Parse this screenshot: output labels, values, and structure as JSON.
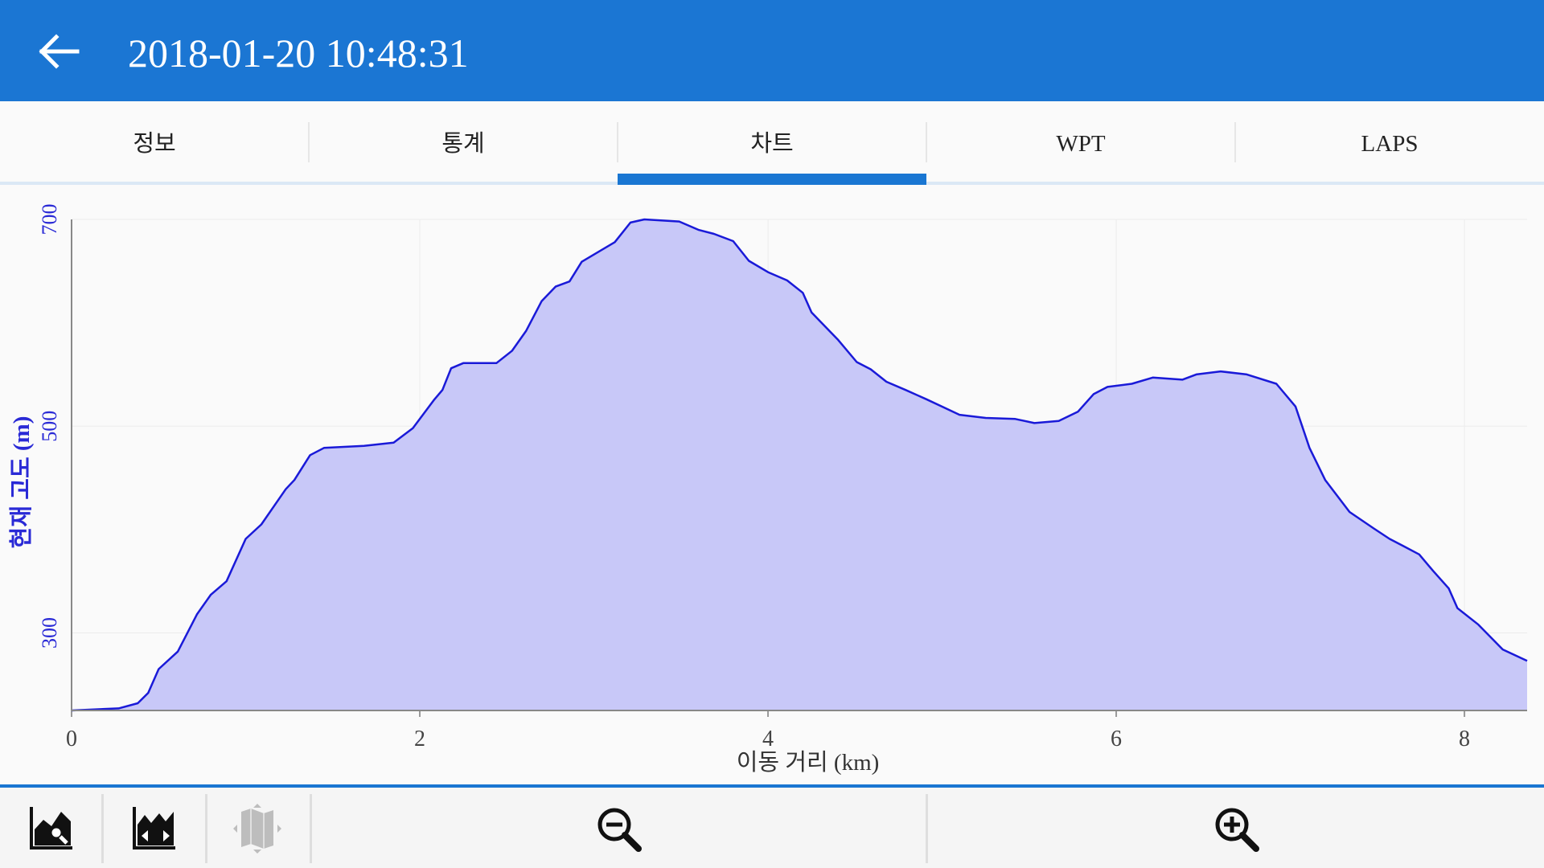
{
  "header": {
    "title": "2018-01-20 10:48:31"
  },
  "tabs": [
    "정보",
    "통계",
    "차트",
    "WPT",
    "LAPS"
  ],
  "chart_data": {
    "type": "line",
    "x_label": "이동 거리 (km)",
    "y_label": "현재 고도 (m)",
    "x": [
      0,
      0.27,
      0.38,
      0.44,
      0.5,
      0.61,
      0.72,
      0.8,
      0.89,
      1.0,
      1.09,
      1.23,
      1.28,
      1.37,
      1.45,
      1.68,
      1.85,
      1.96,
      2.08,
      2.13,
      2.18,
      2.25,
      2.44,
      2.53,
      2.61,
      2.7,
      2.78,
      2.86,
      2.93,
      3.04,
      3.12,
      3.21,
      3.29,
      3.49,
      3.6,
      3.69,
      3.8,
      3.89,
      4.0,
      4.11,
      4.2,
      4.25,
      4.4,
      4.51,
      4.59,
      4.68,
      4.79,
      4.91,
      5.1,
      5.25,
      5.42,
      5.53,
      5.67,
      5.78,
      5.87,
      5.95,
      6.09,
      6.21,
      6.38,
      6.46,
      6.6,
      6.75,
      6.92,
      7.03,
      7.11,
      7.2,
      7.34,
      7.48,
      7.57,
      7.65,
      7.74,
      7.82,
      7.91,
      7.96,
      8.08,
      8.22,
      8.36
    ],
    "series": [
      {
        "color": "#1a1ad8",
        "fill": "#c8c8f8",
        "values": [
          225,
          227,
          232,
          242,
          265,
          282,
          318,
          337,
          350,
          391,
          405,
          439,
          448,
          472,
          479,
          481,
          484,
          498,
          525,
          535,
          556,
          561,
          561,
          573,
          592,
          621,
          635,
          640,
          659,
          670,
          678,
          697,
          700,
          698,
          690,
          686,
          679,
          660,
          649,
          641,
          629,
          610,
          584,
          562,
          555,
          543,
          535,
          526,
          511,
          508,
          507,
          503,
          505,
          514,
          531,
          538,
          541,
          547,
          545,
          550,
          553,
          550,
          541,
          519,
          479,
          448,
          417,
          401,
          391,
          384,
          376,
          360,
          343,
          324,
          308,
          284,
          273
        ]
      }
    ],
    "xlim": [
      0,
      8.36
    ],
    "ylim": [
      225,
      700
    ],
    "xticks": [
      0,
      2,
      4,
      6,
      8
    ],
    "yticks": [
      300,
      500,
      700
    ],
    "grid": true,
    "axis_label_color": "#2a2ad6"
  }
}
